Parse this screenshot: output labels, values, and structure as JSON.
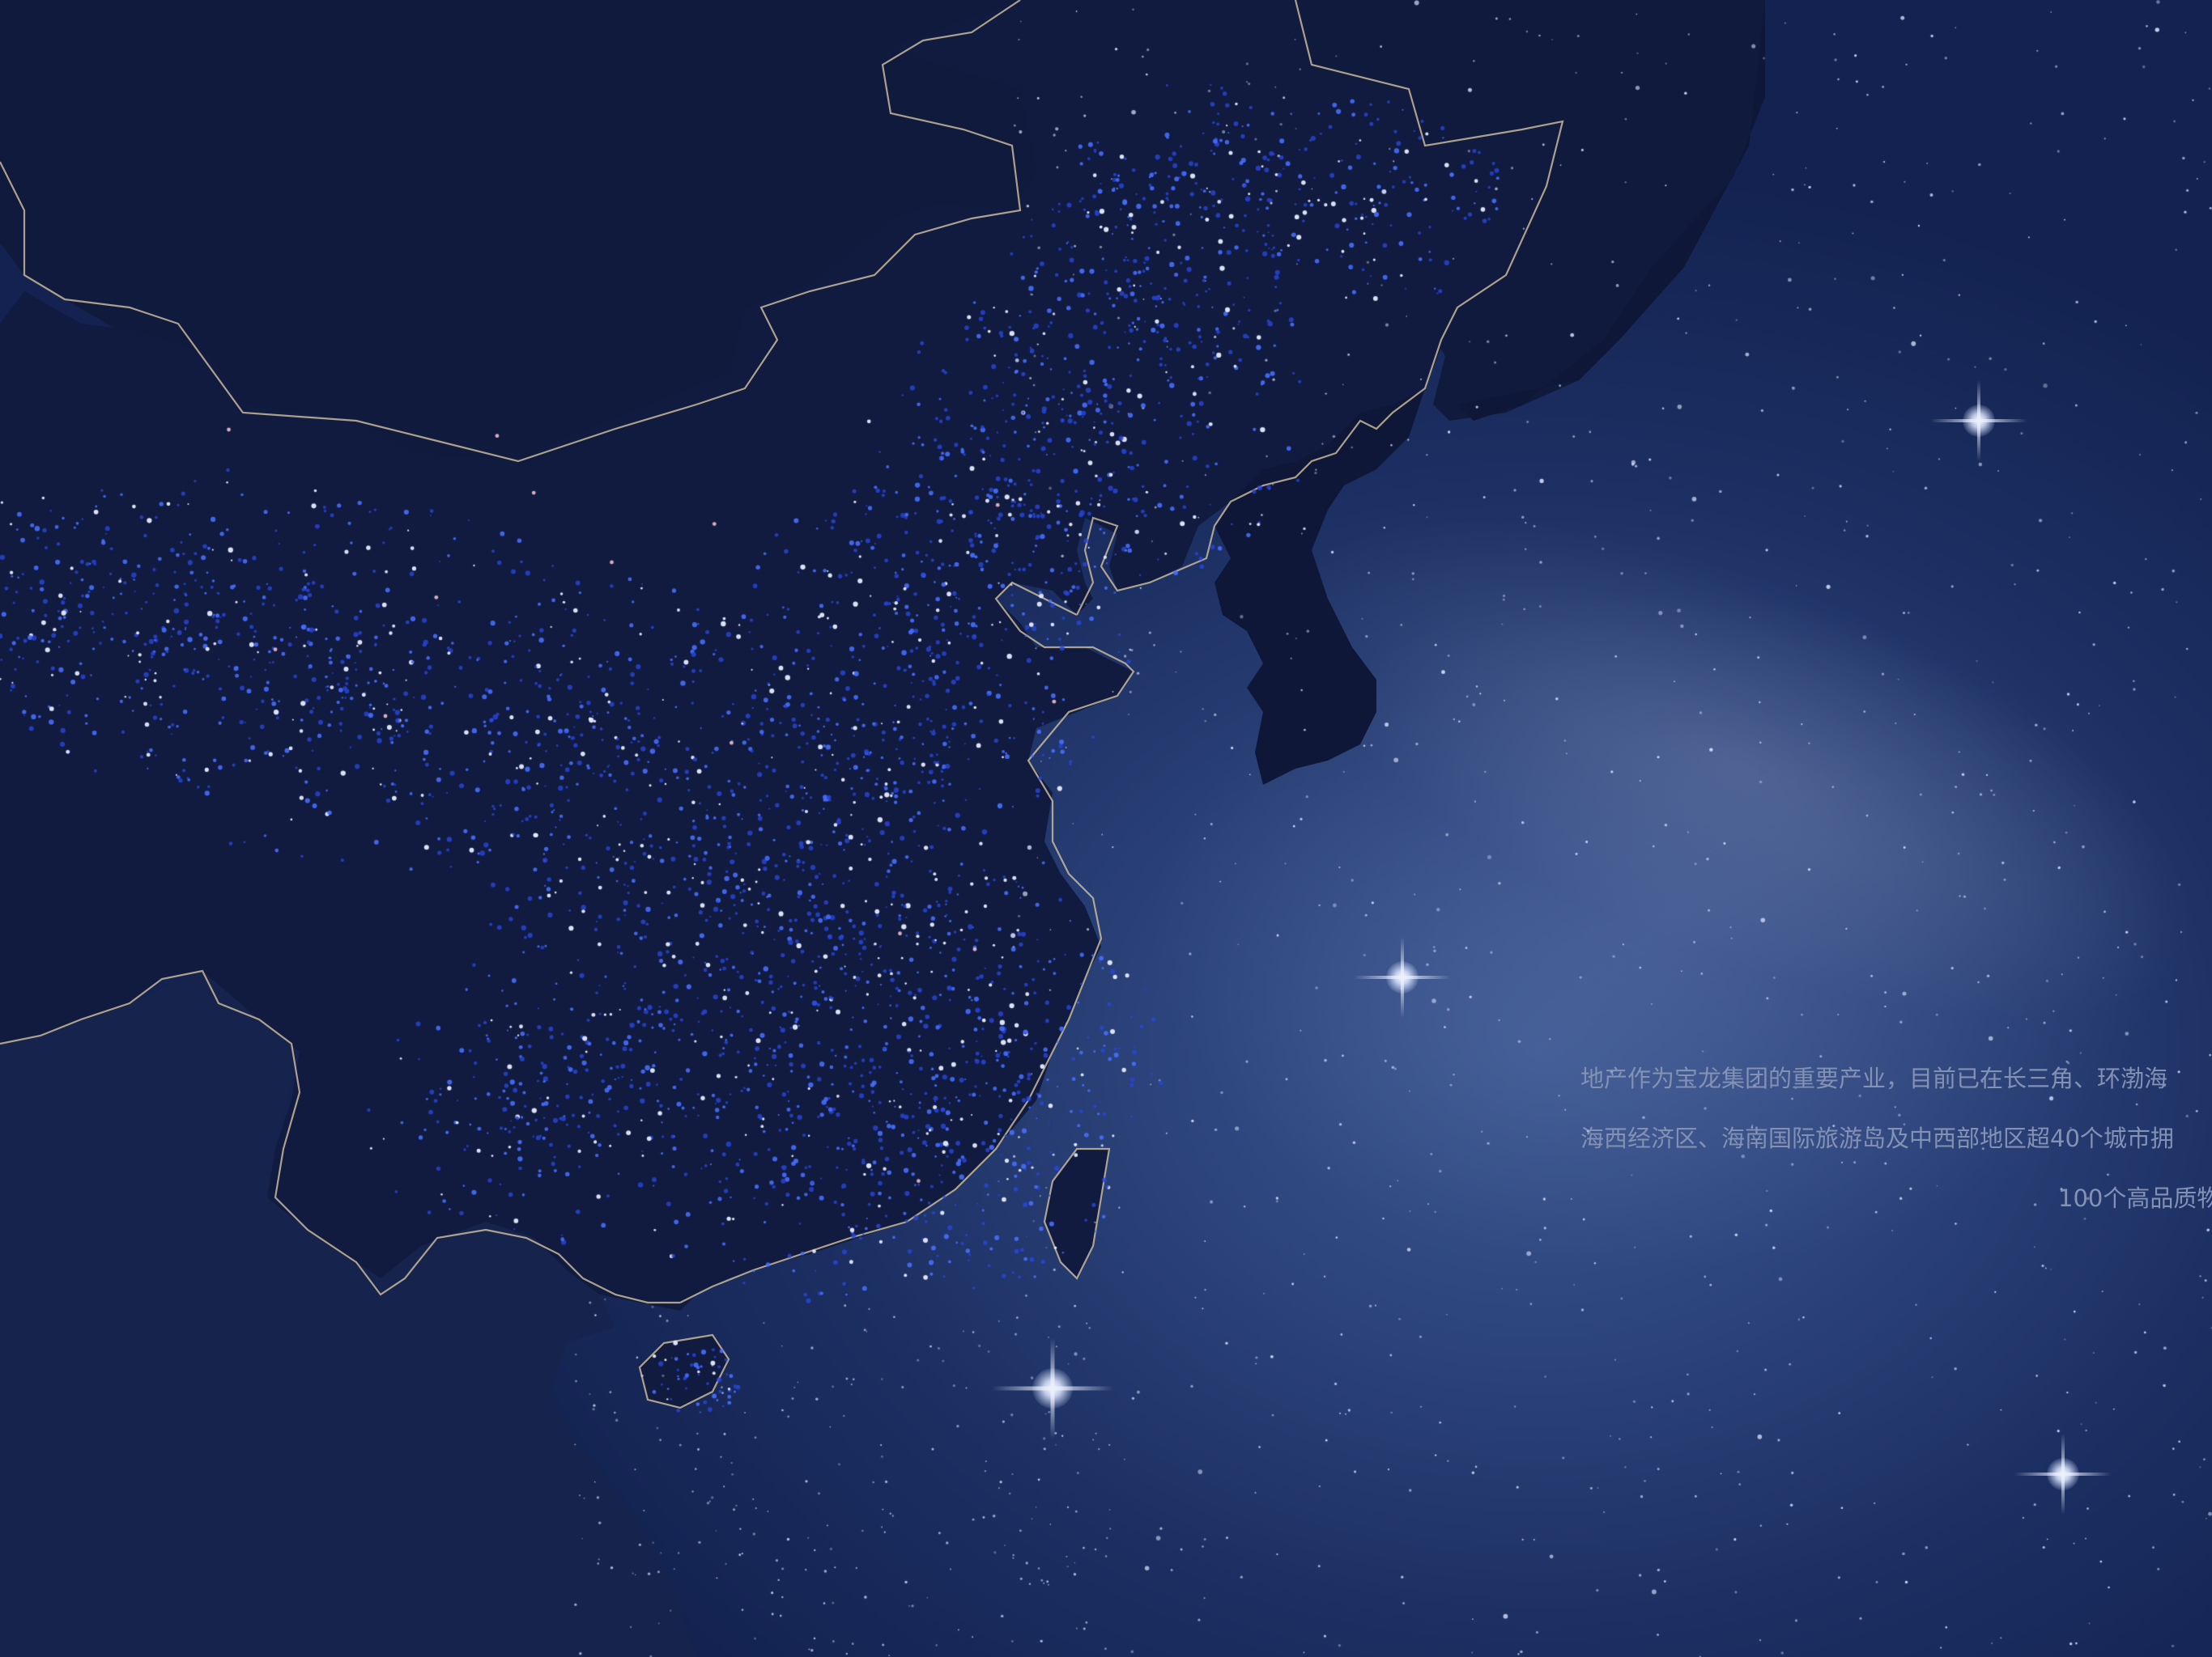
{
  "page": {
    "background_color": "#0e1a3d",
    "land_color": "#111b40",
    "border_color": "#c8b89a",
    "city_light_color": "#2f57ff",
    "text_color": "#8391b4"
  },
  "intro": {
    "line_1": "地产作为宝龙集团的重要产业，目前已在长三角、环渤海",
    "line_2": "海西经济区、海南国际旅游岛及中西部地区超40个城市拥",
    "line_3": "100个高品质物"
  }
}
